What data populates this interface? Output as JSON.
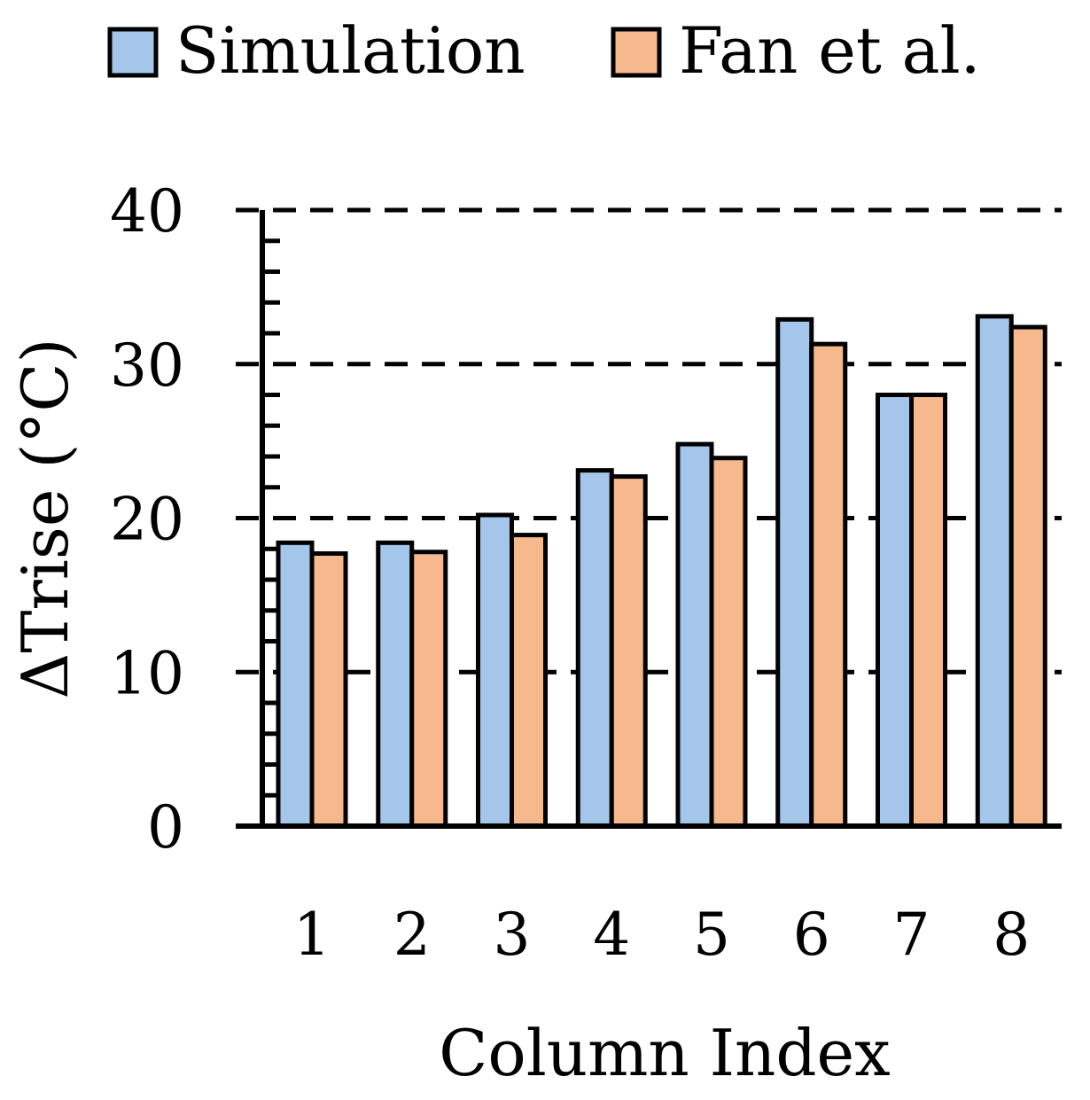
{
  "chart_data": {
    "type": "bar",
    "title": "",
    "xlabel": "Column Index",
    "ylabel": "ΔTrise (°C)",
    "categories": [
      "1",
      "2",
      "3",
      "4",
      "5",
      "6",
      "7",
      "8"
    ],
    "series": [
      {
        "name": "Simulation",
        "color": "#a3c6ea",
        "values": [
          18.4,
          18.4,
          20.2,
          23.1,
          24.8,
          32.9,
          28.0,
          33.1
        ]
      },
      {
        "name": "Fan et al.",
        "color": "#f5b98d",
        "values": [
          17.7,
          17.8,
          18.9,
          22.7,
          23.9,
          31.3,
          28.0,
          32.4
        ]
      }
    ],
    "ylim": [
      0,
      40
    ],
    "yticks": [
      0,
      10,
      20,
      30,
      40
    ],
    "minor_tick_step": 2,
    "grid": "dashed-major-y",
    "legend_position": "top"
  }
}
